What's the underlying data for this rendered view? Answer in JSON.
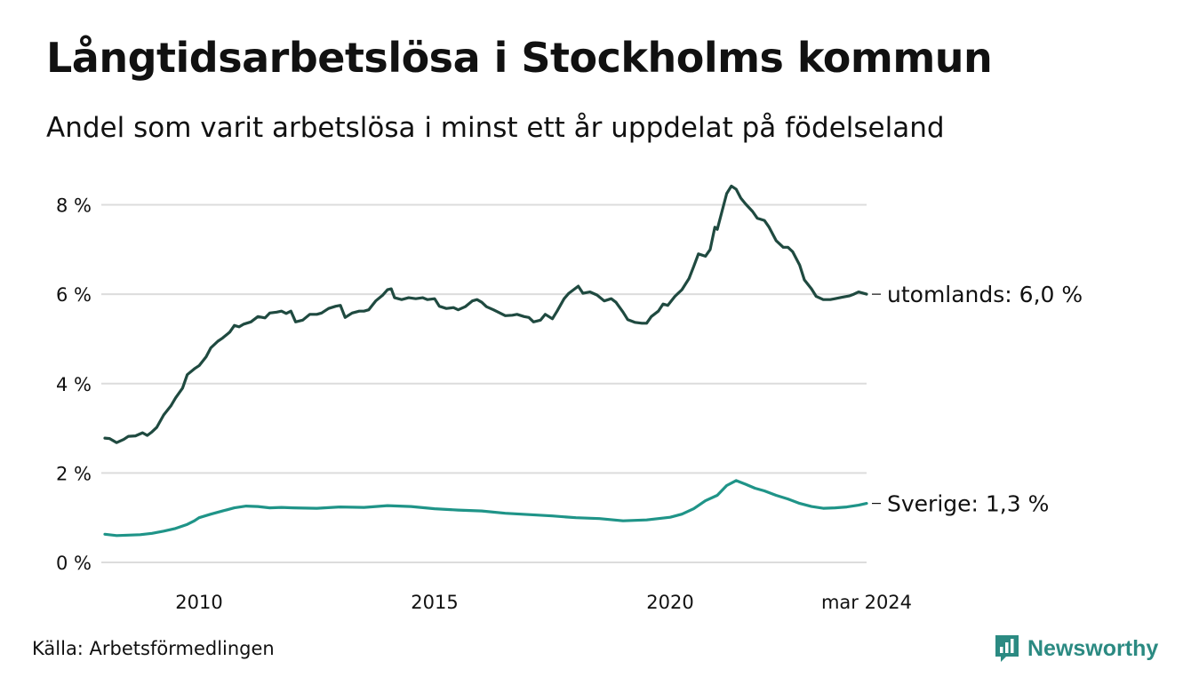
{
  "title": "Långtidsarbetslösa i Stockholms kommun",
  "subtitle": "Andel som varit arbetslösa i minst ett år uppdelat på födelseland",
  "source": "Källa: Arbetsförmedlingen",
  "brand": {
    "name": "Newsworthy",
    "icon": "newsworthy-logo-icon"
  },
  "colors": {
    "utomlands": "#1f4a40",
    "sverige": "#1f9488",
    "grid": "#dcdcdc"
  },
  "chart_data": {
    "type": "line",
    "title": "Långtidsarbetslösa i Stockholms kommun",
    "xlabel": "",
    "ylabel": "",
    "xlim": [
      2008.0,
      2024.17
    ],
    "ylim": [
      0,
      8.8
    ],
    "grid": true,
    "y_ticks": [
      {
        "value": 0,
        "label": "0 %"
      },
      {
        "value": 2,
        "label": "2 %"
      },
      {
        "value": 4,
        "label": "4 %"
      },
      {
        "value": 6,
        "label": "6 %"
      },
      {
        "value": 8,
        "label": "8 %"
      }
    ],
    "x_ticks": [
      {
        "value": 2010,
        "label": "2010"
      },
      {
        "value": 2015,
        "label": "2015"
      },
      {
        "value": 2020,
        "label": "2020"
      },
      {
        "value": 2024.17,
        "label": "mar 2024"
      }
    ],
    "series": [
      {
        "name": "utomlands",
        "end_label": "utomlands: 6,0 %",
        "points": [
          [
            2008.0,
            2.78
          ],
          [
            2008.1,
            2.77
          ],
          [
            2008.25,
            2.68
          ],
          [
            2008.4,
            2.75
          ],
          [
            2008.5,
            2.82
          ],
          [
            2008.65,
            2.83
          ],
          [
            2008.8,
            2.9
          ],
          [
            2008.9,
            2.84
          ],
          [
            2009.0,
            2.92
          ],
          [
            2009.1,
            3.02
          ],
          [
            2009.25,
            3.3
          ],
          [
            2009.4,
            3.5
          ],
          [
            2009.5,
            3.68
          ],
          [
            2009.65,
            3.9
          ],
          [
            2009.75,
            4.2
          ],
          [
            2009.9,
            4.33
          ],
          [
            2010.0,
            4.4
          ],
          [
            2010.15,
            4.6
          ],
          [
            2010.25,
            4.8
          ],
          [
            2010.4,
            4.95
          ],
          [
            2010.5,
            5.02
          ],
          [
            2010.65,
            5.15
          ],
          [
            2010.75,
            5.3
          ],
          [
            2010.85,
            5.27
          ],
          [
            2010.95,
            5.33
          ],
          [
            2011.1,
            5.38
          ],
          [
            2011.25,
            5.5
          ],
          [
            2011.4,
            5.47
          ],
          [
            2011.5,
            5.58
          ],
          [
            2011.65,
            5.6
          ],
          [
            2011.75,
            5.62
          ],
          [
            2011.85,
            5.57
          ],
          [
            2011.95,
            5.62
          ],
          [
            2012.05,
            5.38
          ],
          [
            2012.2,
            5.42
          ],
          [
            2012.35,
            5.55
          ],
          [
            2012.5,
            5.55
          ],
          [
            2012.6,
            5.58
          ],
          [
            2012.75,
            5.68
          ],
          [
            2012.9,
            5.73
          ],
          [
            2013.0,
            5.75
          ],
          [
            2013.1,
            5.48
          ],
          [
            2013.25,
            5.58
          ],
          [
            2013.4,
            5.62
          ],
          [
            2013.5,
            5.62
          ],
          [
            2013.6,
            5.65
          ],
          [
            2013.75,
            5.85
          ],
          [
            2013.9,
            5.98
          ],
          [
            2014.0,
            6.1
          ],
          [
            2014.08,
            6.12
          ],
          [
            2014.15,
            5.92
          ],
          [
            2014.3,
            5.88
          ],
          [
            2014.45,
            5.92
          ],
          [
            2014.6,
            5.9
          ],
          [
            2014.75,
            5.92
          ],
          [
            2014.85,
            5.88
          ],
          [
            2015.0,
            5.9
          ],
          [
            2015.1,
            5.73
          ],
          [
            2015.25,
            5.68
          ],
          [
            2015.4,
            5.7
          ],
          [
            2015.5,
            5.65
          ],
          [
            2015.65,
            5.72
          ],
          [
            2015.8,
            5.85
          ],
          [
            2015.9,
            5.88
          ],
          [
            2016.0,
            5.82
          ],
          [
            2016.1,
            5.72
          ],
          [
            2016.25,
            5.65
          ],
          [
            2016.35,
            5.6
          ],
          [
            2016.5,
            5.52
          ],
          [
            2016.65,
            5.53
          ],
          [
            2016.75,
            5.55
          ],
          [
            2016.9,
            5.5
          ],
          [
            2017.0,
            5.48
          ],
          [
            2017.1,
            5.38
          ],
          [
            2017.25,
            5.42
          ],
          [
            2017.35,
            5.55
          ],
          [
            2017.5,
            5.45
          ],
          [
            2017.6,
            5.62
          ],
          [
            2017.75,
            5.9
          ],
          [
            2017.85,
            6.02
          ],
          [
            2017.95,
            6.1
          ],
          [
            2018.05,
            6.18
          ],
          [
            2018.15,
            6.02
          ],
          [
            2018.3,
            6.05
          ],
          [
            2018.45,
            5.98
          ],
          [
            2018.6,
            5.85
          ],
          [
            2018.75,
            5.9
          ],
          [
            2018.85,
            5.82
          ],
          [
            2019.0,
            5.6
          ],
          [
            2019.1,
            5.43
          ],
          [
            2019.25,
            5.37
          ],
          [
            2019.4,
            5.35
          ],
          [
            2019.5,
            5.35
          ],
          [
            2019.6,
            5.5
          ],
          [
            2019.75,
            5.62
          ],
          [
            2019.85,
            5.78
          ],
          [
            2019.95,
            5.75
          ],
          [
            2020.1,
            5.95
          ],
          [
            2020.25,
            6.1
          ],
          [
            2020.4,
            6.35
          ],
          [
            2020.5,
            6.62
          ],
          [
            2020.6,
            6.9
          ],
          [
            2020.75,
            6.85
          ],
          [
            2020.85,
            7.0
          ],
          [
            2020.95,
            7.5
          ],
          [
            2021.0,
            7.45
          ],
          [
            2021.1,
            7.85
          ],
          [
            2021.2,
            8.25
          ],
          [
            2021.3,
            8.42
          ],
          [
            2021.4,
            8.35
          ],
          [
            2021.5,
            8.15
          ],
          [
            2021.6,
            8.02
          ],
          [
            2021.75,
            7.85
          ],
          [
            2021.85,
            7.7
          ],
          [
            2022.0,
            7.65
          ],
          [
            2022.1,
            7.5
          ],
          [
            2022.25,
            7.2
          ],
          [
            2022.4,
            7.05
          ],
          [
            2022.5,
            7.05
          ],
          [
            2022.6,
            6.95
          ],
          [
            2022.75,
            6.65
          ],
          [
            2022.85,
            6.32
          ],
          [
            2023.0,
            6.12
          ],
          [
            2023.1,
            5.95
          ],
          [
            2023.25,
            5.88
          ],
          [
            2023.4,
            5.88
          ],
          [
            2023.5,
            5.9
          ],
          [
            2023.65,
            5.93
          ],
          [
            2023.8,
            5.96
          ],
          [
            2023.9,
            6.0
          ],
          [
            2024.0,
            6.05
          ],
          [
            2024.17,
            6.0
          ]
        ]
      },
      {
        "name": "Sverige",
        "end_label": "Sverige: 1,3 %",
        "points": [
          [
            2008.0,
            0.63
          ],
          [
            2008.25,
            0.6
          ],
          [
            2008.5,
            0.61
          ],
          [
            2008.75,
            0.62
          ],
          [
            2009.0,
            0.65
          ],
          [
            2009.25,
            0.7
          ],
          [
            2009.5,
            0.76
          ],
          [
            2009.75,
            0.85
          ],
          [
            2009.9,
            0.93
          ],
          [
            2010.0,
            1.0
          ],
          [
            2010.25,
            1.08
          ],
          [
            2010.5,
            1.15
          ],
          [
            2010.75,
            1.22
          ],
          [
            2011.0,
            1.26
          ],
          [
            2011.25,
            1.25
          ],
          [
            2011.5,
            1.22
          ],
          [
            2011.75,
            1.23
          ],
          [
            2012.0,
            1.22
          ],
          [
            2012.5,
            1.21
          ],
          [
            2013.0,
            1.24
          ],
          [
            2013.5,
            1.23
          ],
          [
            2014.0,
            1.27
          ],
          [
            2014.5,
            1.25
          ],
          [
            2015.0,
            1.2
          ],
          [
            2015.5,
            1.17
          ],
          [
            2016.0,
            1.15
          ],
          [
            2016.5,
            1.1
          ],
          [
            2017.0,
            1.07
          ],
          [
            2017.5,
            1.04
          ],
          [
            2018.0,
            1.0
          ],
          [
            2018.5,
            0.98
          ],
          [
            2019.0,
            0.93
          ],
          [
            2019.5,
            0.95
          ],
          [
            2020.0,
            1.01
          ],
          [
            2020.25,
            1.08
          ],
          [
            2020.5,
            1.2
          ],
          [
            2020.75,
            1.38
          ],
          [
            2021.0,
            1.5
          ],
          [
            2021.2,
            1.72
          ],
          [
            2021.4,
            1.83
          ],
          [
            2021.6,
            1.75
          ],
          [
            2021.8,
            1.66
          ],
          [
            2022.0,
            1.6
          ],
          [
            2022.25,
            1.5
          ],
          [
            2022.5,
            1.42
          ],
          [
            2022.75,
            1.32
          ],
          [
            2023.0,
            1.25
          ],
          [
            2023.25,
            1.21
          ],
          [
            2023.5,
            1.22
          ],
          [
            2023.75,
            1.24
          ],
          [
            2024.0,
            1.28
          ],
          [
            2024.17,
            1.32
          ]
        ]
      }
    ]
  }
}
